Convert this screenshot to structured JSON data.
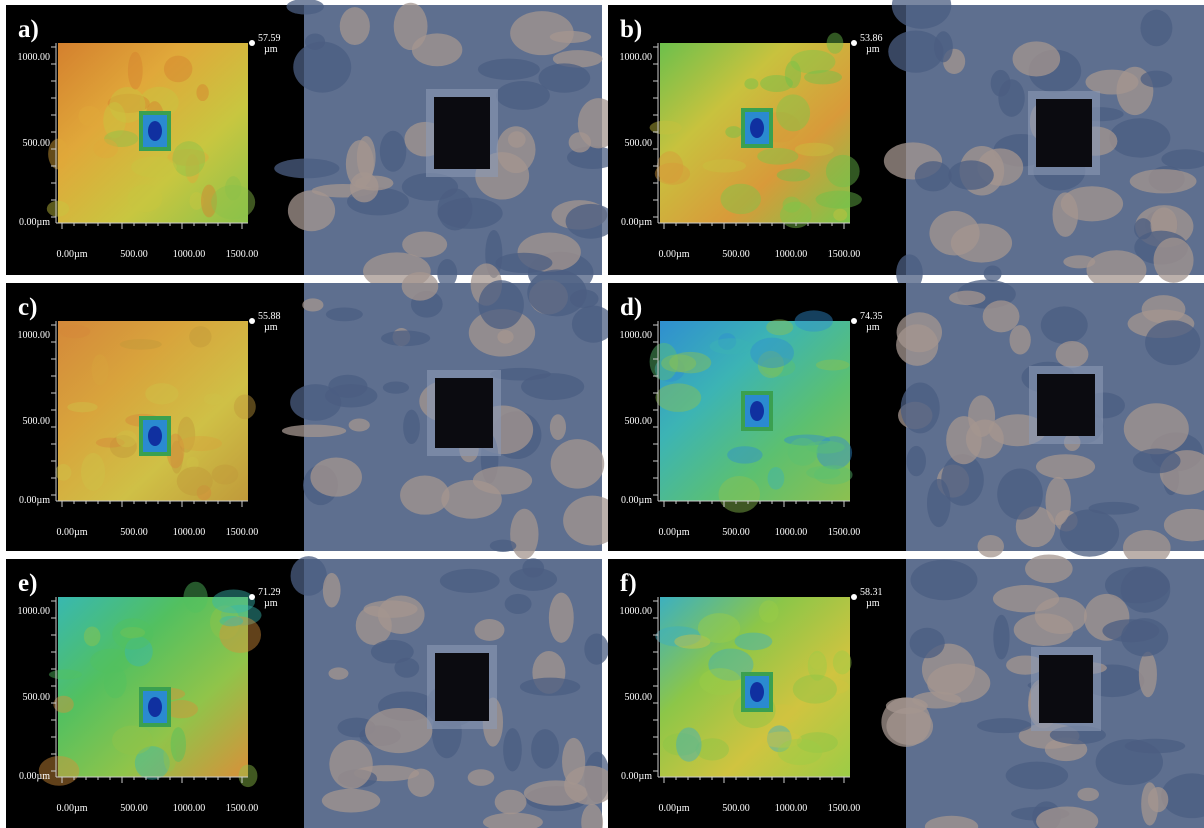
{
  "figure": {
    "x_tick_labels": [
      "0.00µm",
      "500.00",
      "1000.00",
      "1500.00"
    ],
    "y_tick_labels": [
      "1000.00",
      "500.00",
      "0.00µm"
    ],
    "panels": [
      {
        "label": "a)",
        "max_height": "57.59",
        "unit": "µm"
      },
      {
        "label": "b)",
        "max_height": "53.86",
        "unit": "µm"
      },
      {
        "label": "c)",
        "max_height": "55.88",
        "unit": "µm"
      },
      {
        "label": "d)",
        "max_height": "74.35",
        "unit": "µm"
      },
      {
        "label": "e)",
        "max_height": "71.29",
        "unit": "µm"
      },
      {
        "label": "f)",
        "max_height": "58.31",
        "unit": "µm"
      }
    ]
  }
}
